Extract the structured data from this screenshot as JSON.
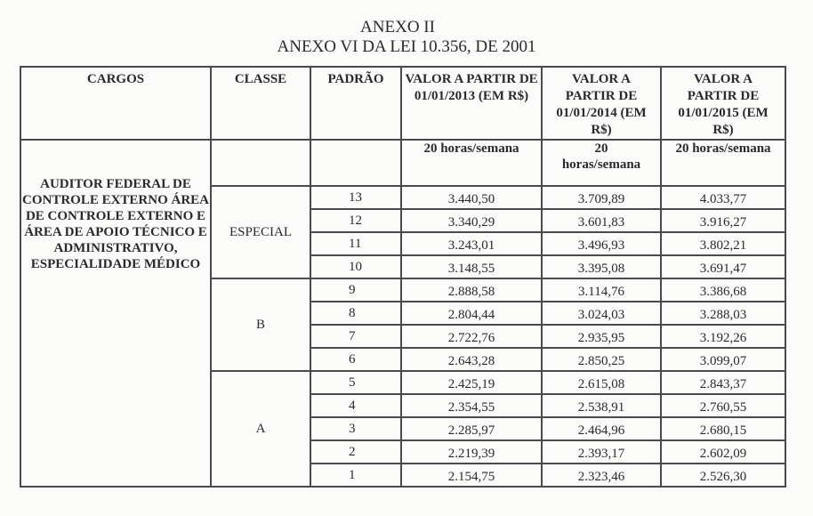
{
  "title": "ANEXO II",
  "subtitle": "ANEXO VI DA LEI 10.356, DE 2001",
  "headers": [
    "CARGOS",
    "CLASSE",
    "PADRÃO",
    "VALOR A PARTIR DE 01/01/2013 (EM R$)",
    "VALOR A PARTIR DE 01/01/2014 (EM R$)",
    "VALOR A PARTIR DE 01/01/2015 (EM R$)"
  ],
  "subheaders": [
    "20 horas/semana",
    "20 horas/semana",
    "20 horas/semana"
  ],
  "cargo": "AUDITOR FEDERAL DE CONTROLE EXTERNO ÁREA DE CONTROLE EXTERNO E ÁREA DE APOIO TÉCNICO E ADMINISTRATIVO, ESPECIALIDADE MÉDICO",
  "classes": [
    {
      "name": "ESPECIAL",
      "rows": [
        {
          "padrao": "13",
          "v2013": "3.440,50",
          "v2014": "3.709,89",
          "v2015": "4.033,77"
        },
        {
          "padrao": "12",
          "v2013": "3.340,29",
          "v2014": "3.601,83",
          "v2015": "3.916,27"
        },
        {
          "padrao": "11",
          "v2013": "3.243,01",
          "v2014": "3.496,93",
          "v2015": "3.802,21"
        },
        {
          "padrao": "10",
          "v2013": "3.148,55",
          "v2014": "3.395,08",
          "v2015": "3.691,47"
        }
      ]
    },
    {
      "name": "B",
      "rows": [
        {
          "padrao": "9",
          "v2013": "2.888,58",
          "v2014": "3.114,76",
          "v2015": "3.386,68"
        },
        {
          "padrao": "8",
          "v2013": "2.804,44",
          "v2014": "3.024,03",
          "v2015": "3.288,03"
        },
        {
          "padrao": "7",
          "v2013": "2.722,76",
          "v2014": "2.935,95",
          "v2015": "3.192,26"
        },
        {
          "padrao": "6",
          "v2013": "2.643,28",
          "v2014": "2.850,25",
          "v2015": "3.099,07"
        }
      ]
    },
    {
      "name": "A",
      "rows": [
        {
          "padrao": "5",
          "v2013": "2.425,19",
          "v2014": "2.615,08",
          "v2015": "2.843,37"
        },
        {
          "padrao": "4",
          "v2013": "2.354,55",
          "v2014": "2.538,91",
          "v2015": "2.760,55"
        },
        {
          "padrao": "3",
          "v2013": "2.285,97",
          "v2014": "2.464,96",
          "v2015": "2.680,15"
        },
        {
          "padrao": "2",
          "v2013": "2.219,39",
          "v2014": "2.393,17",
          "v2015": "2.602,09"
        },
        {
          "padrao": "1",
          "v2013": "2.154,75",
          "v2014": "2.323,46",
          "v2015": "2.526,30"
        }
      ]
    }
  ]
}
